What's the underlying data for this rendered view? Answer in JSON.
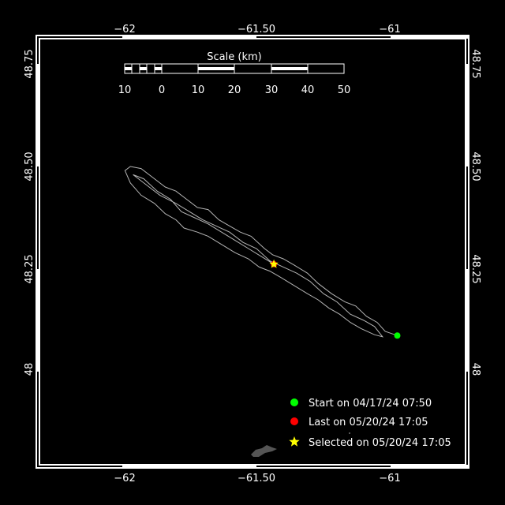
{
  "map": {
    "lon_range": [
      -62.3,
      -60.7
    ],
    "lat_range": [
      47.78,
      48.83
    ],
    "lon_ticks": [
      {
        "value": -62,
        "label": "−62"
      },
      {
        "value": -61.5,
        "label": "−61.50"
      },
      {
        "value": -61,
        "label": "−61"
      }
    ],
    "lat_ticks": [
      {
        "value": 48.75,
        "label": "48.75"
      },
      {
        "value": 48.5,
        "label": "48.50"
      },
      {
        "value": 48.25,
        "label": "48.25"
      },
      {
        "value": 48,
        "label": "48"
      }
    ],
    "background_color": "#000000",
    "track_color": "#b4b4b4",
    "land_color": "#555555"
  },
  "scale_bar": {
    "title": "Scale (km)",
    "labels": [
      "10",
      "0",
      "10",
      "20",
      "30",
      "40",
      "50"
    ]
  },
  "track": [
    [
      -60.975,
      48.088
    ],
    [
      -61.02,
      48.098
    ],
    [
      -61.05,
      48.12
    ],
    [
      -61.09,
      48.135
    ],
    [
      -61.13,
      48.16
    ],
    [
      -61.17,
      48.17
    ],
    [
      -61.22,
      48.19
    ],
    [
      -61.27,
      48.215
    ],
    [
      -61.31,
      48.24
    ],
    [
      -61.36,
      48.26
    ],
    [
      -61.4,
      48.275
    ],
    [
      -61.44,
      48.285
    ],
    [
      -61.47,
      48.3
    ],
    [
      -61.52,
      48.33
    ],
    [
      -61.56,
      48.34
    ],
    [
      -61.6,
      48.355
    ],
    [
      -61.64,
      48.37
    ],
    [
      -61.68,
      48.395
    ],
    [
      -61.72,
      48.4
    ],
    [
      -61.76,
      48.42
    ],
    [
      -61.8,
      48.44
    ],
    [
      -61.84,
      48.45
    ],
    [
      -61.88,
      48.47
    ],
    [
      -61.93,
      48.495
    ],
    [
      -61.97,
      48.5
    ],
    [
      -61.99,
      48.49
    ],
    [
      -61.97,
      48.46
    ],
    [
      -61.93,
      48.43
    ],
    [
      -61.88,
      48.41
    ],
    [
      -61.84,
      48.385
    ],
    [
      -61.8,
      48.37
    ],
    [
      -61.77,
      48.35
    ],
    [
      -61.72,
      48.34
    ],
    [
      -61.68,
      48.33
    ],
    [
      -61.63,
      48.31
    ],
    [
      -61.58,
      48.29
    ],
    [
      -61.53,
      48.275
    ],
    [
      -61.49,
      48.255
    ],
    [
      -61.45,
      48.245
    ],
    [
      -61.41,
      48.23
    ],
    [
      -61.36,
      48.21
    ],
    [
      -61.31,
      48.19
    ],
    [
      -61.27,
      48.175
    ],
    [
      -61.23,
      48.155
    ],
    [
      -61.19,
      48.14
    ],
    [
      -61.15,
      48.12
    ],
    [
      -61.11,
      48.105
    ],
    [
      -61.06,
      48.09
    ],
    [
      -61.03,
      48.085
    ],
    [
      -61.06,
      48.11
    ],
    [
      -61.1,
      48.125
    ],
    [
      -61.15,
      48.14
    ],
    [
      -61.2,
      48.17
    ],
    [
      -61.25,
      48.19
    ],
    [
      -61.3,
      48.22
    ],
    [
      -61.35,
      48.24
    ],
    [
      -61.4,
      48.255
    ],
    [
      -61.45,
      48.27
    ],
    [
      -61.5,
      48.3
    ],
    [
      -61.55,
      48.315
    ],
    [
      -61.6,
      48.34
    ],
    [
      -61.65,
      48.355
    ],
    [
      -61.7,
      48.37
    ],
    [
      -61.75,
      48.39
    ],
    [
      -61.8,
      48.41
    ],
    [
      -61.86,
      48.43
    ],
    [
      -61.91,
      48.455
    ],
    [
      -61.96,
      48.48
    ],
    [
      -61.92,
      48.47
    ],
    [
      -61.87,
      48.44
    ],
    [
      -61.82,
      48.42
    ],
    [
      -61.78,
      48.39
    ],
    [
      -61.73,
      48.375
    ],
    [
      -61.68,
      48.36
    ],
    [
      -61.63,
      48.34
    ],
    [
      -61.58,
      48.32
    ],
    [
      -61.53,
      48.3
    ],
    [
      -61.48,
      48.28
    ],
    [
      -61.435,
      48.262
    ]
  ],
  "markers": {
    "start": {
      "lon": -60.975,
      "lat": 48.088,
      "color": "#00ff00"
    },
    "last": {
      "lon": -61.435,
      "lat": 48.262,
      "color": "#ff0000"
    },
    "selected": {
      "lon": -61.435,
      "lat": 48.262,
      "color": "#ffff00"
    }
  },
  "legend": [
    {
      "label": "Start on 04/17/24 07:50",
      "color": "#00ff00",
      "symbol": "circle"
    },
    {
      "label": "Last on 05/20/24 17:05",
      "color": "#ff0000",
      "symbol": "circle"
    },
    {
      "label": "Selected on 05/20/24 17:05",
      "color": "#ffff00",
      "symbol": "star"
    }
  ]
}
